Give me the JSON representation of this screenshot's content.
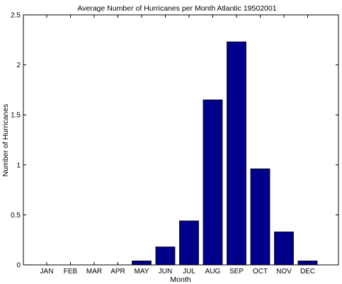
{
  "chart_data": {
    "type": "bar",
    "title": "Average Number of Hurricanes per Month  Atlantic 19502001",
    "xlabel": "Month",
    "ylabel": "Number of Hurricanes",
    "categories": [
      "JAN",
      "FEB",
      "MAR",
      "APR",
      "MAY",
      "JUN",
      "JUL",
      "AUG",
      "SEP",
      "OCT",
      "NOV",
      "DEC"
    ],
    "values": [
      0,
      0,
      0,
      0,
      0.04,
      0.18,
      0.44,
      1.65,
      2.23,
      0.96,
      0.33,
      0.04
    ],
    "ylim": [
      0,
      2.5
    ],
    "yticks": [
      0,
      0.5,
      1,
      1.5,
      2,
      2.5
    ],
    "ytick_labels": [
      "0",
      "0.5",
      "1",
      "1.5",
      "2",
      "2.5"
    ],
    "bar_color": "#00008b",
    "grid": false,
    "legend": false
  }
}
